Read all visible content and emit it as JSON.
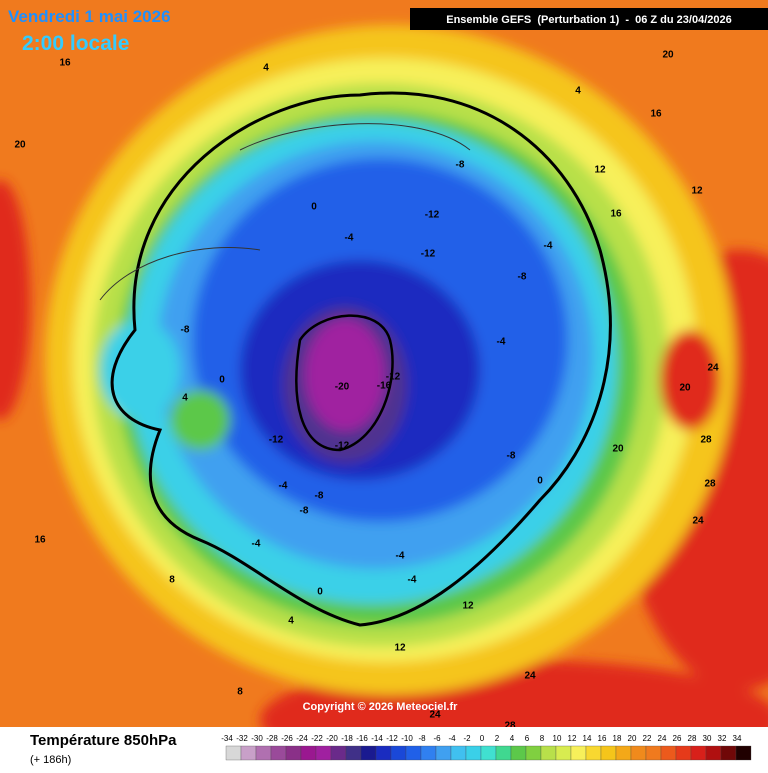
{
  "header": {
    "date": "Vendredi 1 mai 2026",
    "time": "2:00 locale",
    "model": "Ensemble GEFS  (Perturbation 1)  -  06 Z du 23/04/2026"
  },
  "map": {
    "contour_labels": [
      -20,
      -16,
      -12,
      -12,
      -12,
      -12,
      -12,
      -8,
      -8,
      -8,
      -8,
      -8,
      -8,
      -4,
      -4,
      -4,
      -4,
      -4,
      -4,
      -4,
      0,
      0,
      0,
      0,
      4,
      4,
      4,
      4,
      8,
      8,
      12,
      12,
      12,
      12,
      16,
      16,
      16,
      16,
      20,
      20,
      20,
      20,
      24,
      24,
      24,
      28,
      28,
      28,
      24
    ]
  },
  "copyright": "Copyright © 2026 Meteociel.fr",
  "legend": {
    "title": "Température 850hPa",
    "lead": "(+ 186h)",
    "ticks": [
      -34,
      -32,
      -30,
      -28,
      -26,
      -24,
      -22,
      -20,
      -18,
      -16,
      -14,
      -12,
      -10,
      -8,
      -6,
      -4,
      -2,
      0,
      2,
      4,
      6,
      8,
      10,
      12,
      14,
      16,
      18,
      20,
      22,
      24,
      26,
      28,
      30,
      32,
      34
    ],
    "colors": [
      "#d8d8d8",
      "#c8a0c8",
      "#b070b0",
      "#9a4a9a",
      "#8a3088",
      "#9a1890",
      "#a020a0",
      "#6a2a8a",
      "#403088",
      "#1a1a90",
      "#1a2cc0",
      "#1a48d8",
      "#2060e8",
      "#3080f0",
      "#40a0f0",
      "#40c0f0",
      "#3ad0e8",
      "#40e0d0",
      "#40d890",
      "#5cc84a",
      "#80d040",
      "#b8e04a",
      "#d8ec50",
      "#f7f05a",
      "#f8d830",
      "#f5c51a",
      "#f4a818",
      "#f08a1c",
      "#f07a1e",
      "#ec5a1c",
      "#e63a1a",
      "#d8201a",
      "#b01010",
      "#700808",
      "#200000"
    ]
  }
}
